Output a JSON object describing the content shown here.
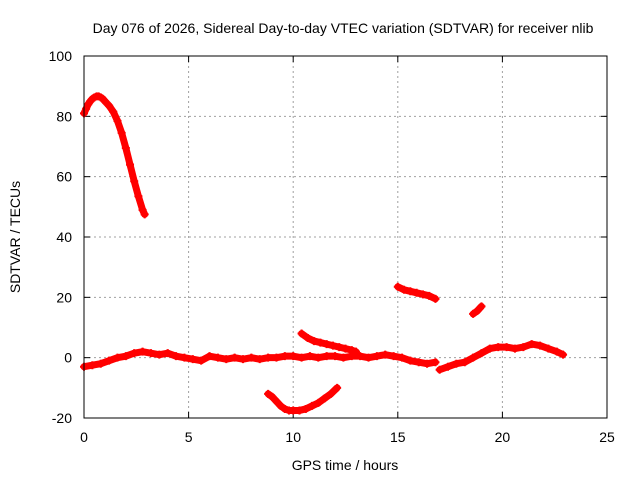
{
  "chart_data": {
    "type": "scatter",
    "title": "Day 076 of 2026, Sidereal Day-to-day VTEC variation (SDTVAR) for receiver nlib",
    "xlabel": "GPS time / hours",
    "ylabel": "SDTVAR / TECUs",
    "xlim": [
      0,
      25
    ],
    "ylim": [
      -20,
      100
    ],
    "xticks": [
      0,
      5,
      10,
      15,
      20,
      25
    ],
    "yticks": [
      -20,
      0,
      20,
      40,
      60,
      80,
      100
    ],
    "grid": true,
    "legend": "none",
    "marker": "+",
    "series": [
      {
        "name": "arc-early-high",
        "x": [
          0.0,
          0.1,
          0.2,
          0.3,
          0.4,
          0.5,
          0.6,
          0.7,
          0.8,
          0.9,
          1.0,
          1.2,
          1.4,
          1.6,
          1.8,
          2.0,
          2.2,
          2.4,
          2.6,
          2.8,
          2.9
        ],
        "y": [
          81,
          82.5,
          84,
          85,
          85.8,
          86.3,
          86.6,
          86.6,
          86.3,
          85.8,
          85,
          83.5,
          81.5,
          78.5,
          74.5,
          69.5,
          64,
          58.5,
          53.5,
          49,
          47.5
        ]
      },
      {
        "name": "baseline-main",
        "x": [
          0.0,
          0.4,
          0.8,
          1.2,
          1.6,
          2.0,
          2.4,
          2.8,
          3.2,
          3.6,
          4.0,
          4.4,
          4.8,
          5.2,
          5.6,
          6.0,
          6.4,
          6.8,
          7.2,
          7.6,
          8.0,
          8.4,
          8.8,
          9.2,
          9.6,
          10.0,
          10.4,
          10.8,
          11.2,
          11.6,
          12.0,
          12.4,
          12.8,
          13.2,
          13.6,
          14.0,
          14.4,
          14.8,
          15.2,
          15.6,
          16.0,
          16.4,
          16.8
        ],
        "y": [
          -3,
          -2.5,
          -2,
          -1,
          0,
          0.5,
          1.5,
          2,
          1.5,
          1,
          1.5,
          0.5,
          0,
          -0.5,
          -1,
          0.5,
          0,
          -0.5,
          0,
          -0.5,
          0,
          -0.5,
          0,
          0,
          0.5,
          0.5,
          0,
          0.5,
          0,
          0.5,
          0.5,
          0,
          0.5,
          0.5,
          0,
          0.5,
          1,
          0.5,
          0,
          -1,
          -1.5,
          -2,
          -1.5
        ]
      },
      {
        "name": "arc-late-baseline",
        "x": [
          17.0,
          17.4,
          17.8,
          18.2,
          18.6,
          19.0,
          19.4,
          19.8,
          20.2,
          20.6,
          21.0,
          21.4,
          21.8,
          22.2,
          22.6,
          22.9
        ],
        "y": [
          -4,
          -3,
          -2,
          -1.5,
          0,
          1.5,
          3,
          3.5,
          3.5,
          3,
          3.5,
          4.5,
          4,
          3,
          2,
          1
        ]
      },
      {
        "name": "arc-dip",
        "x": [
          8.8,
          9.0,
          9.2,
          9.4,
          9.6,
          9.8,
          10.0,
          10.3,
          10.6,
          10.9,
          11.2,
          11.5,
          11.8,
          12.1
        ],
        "y": [
          -12,
          -13,
          -14.5,
          -16,
          -17,
          -17.5,
          -17.5,
          -17.5,
          -17,
          -16,
          -15,
          -13.5,
          -12,
          -10
        ]
      },
      {
        "name": "arc-mid-positive",
        "x": [
          10.4,
          10.7,
          11.0,
          11.3,
          11.6,
          11.9,
          12.2,
          12.5,
          12.8,
          13.0
        ],
        "y": [
          8,
          6.5,
          5.5,
          5,
          4.5,
          4,
          3.5,
          3,
          2.5,
          2
        ]
      },
      {
        "name": "arc-upper-right",
        "x": [
          15.0,
          15.3,
          15.6,
          15.9,
          16.2,
          16.5,
          16.8
        ],
        "y": [
          23.5,
          22.5,
          22,
          21.5,
          21,
          20.5,
          19.5
        ]
      },
      {
        "name": "arc-short",
        "x": [
          18.6,
          18.8,
          19.0
        ],
        "y": [
          14.5,
          15.5,
          17
        ]
      }
    ]
  }
}
